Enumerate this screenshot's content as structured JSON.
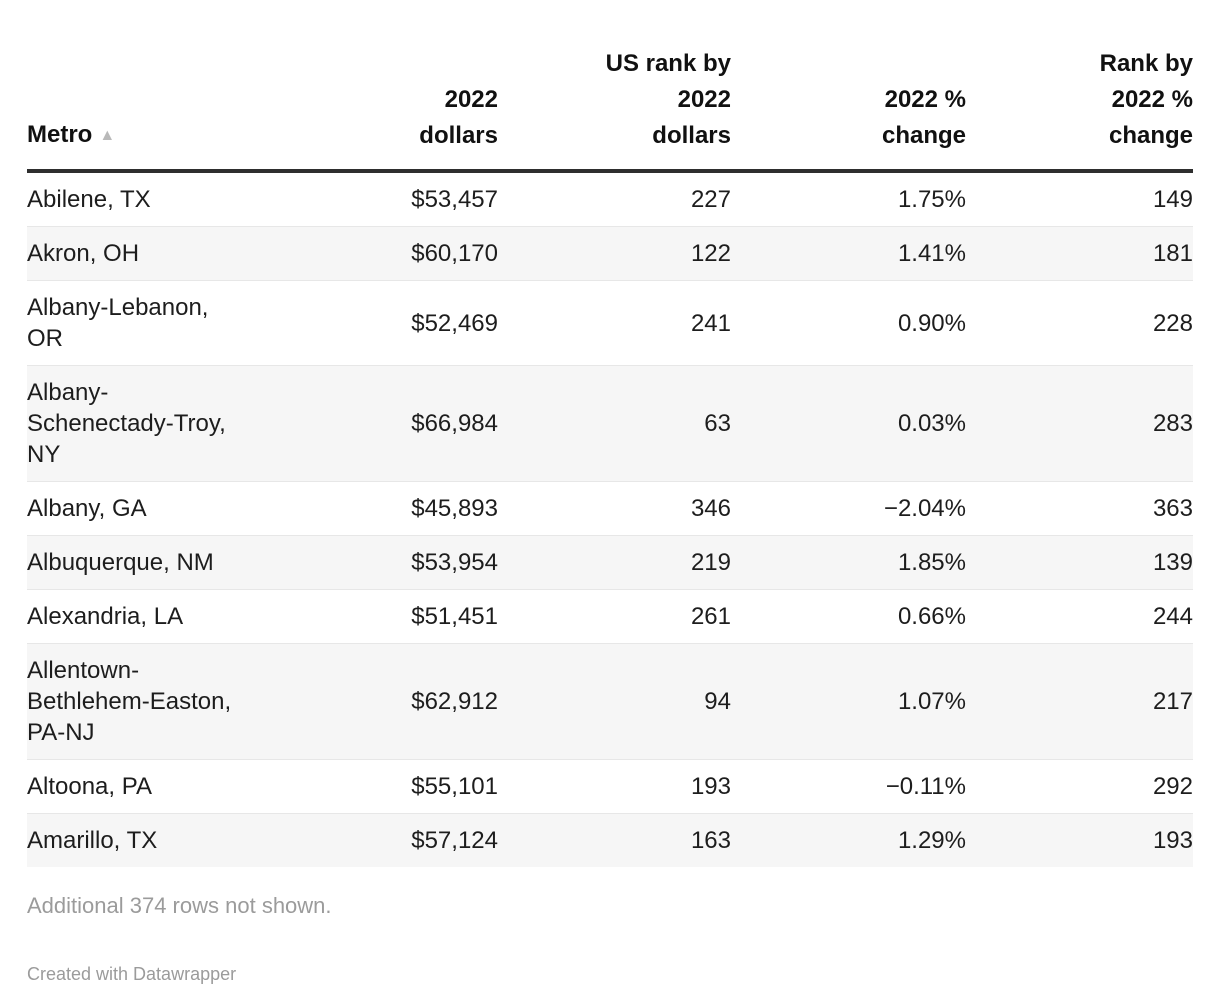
{
  "chart_data": {
    "type": "table",
    "sort_icon": "▲",
    "columns": [
      {
        "id": "metro",
        "label": "Metro",
        "align": "left",
        "sorted": "ascending"
      },
      {
        "id": "dollars",
        "label": "2022\ndollars",
        "align": "right"
      },
      {
        "id": "rank_dollars",
        "label": "US rank by\n2022\ndollars",
        "align": "right"
      },
      {
        "id": "pct_change",
        "label": "2022 %\nchange",
        "align": "right"
      },
      {
        "id": "rank_pct",
        "label": "Rank by\n2022 %\nchange",
        "align": "right"
      }
    ],
    "rows": [
      {
        "metro": "Abilene, TX",
        "dollars": "$53,457",
        "rank_dollars": "227",
        "pct_change": "1.75%",
        "rank_pct": "149"
      },
      {
        "metro": "Akron, OH",
        "dollars": "$60,170",
        "rank_dollars": "122",
        "pct_change": "1.41%",
        "rank_pct": "181"
      },
      {
        "metro": "Albany-Lebanon,\nOR",
        "dollars": "$52,469",
        "rank_dollars": "241",
        "pct_change": "0.90%",
        "rank_pct": "228"
      },
      {
        "metro": "Albany-\nSchenectady-Troy,\nNY",
        "dollars": "$66,984",
        "rank_dollars": "63",
        "pct_change": "0.03%",
        "rank_pct": "283"
      },
      {
        "metro": "Albany, GA",
        "dollars": "$45,893",
        "rank_dollars": "346",
        "pct_change": "−2.04%",
        "rank_pct": "363"
      },
      {
        "metro": "Albuquerque, NM",
        "dollars": "$53,954",
        "rank_dollars": "219",
        "pct_change": "1.85%",
        "rank_pct": "139"
      },
      {
        "metro": "Alexandria, LA",
        "dollars": "$51,451",
        "rank_dollars": "261",
        "pct_change": "0.66%",
        "rank_pct": "244"
      },
      {
        "metro": "Allentown-\nBethlehem-Easton,\nPA-NJ",
        "dollars": "$62,912",
        "rank_dollars": "94",
        "pct_change": "1.07%",
        "rank_pct": "217"
      },
      {
        "metro": "Altoona, PA",
        "dollars": "$55,101",
        "rank_dollars": "193",
        "pct_change": "−0.11%",
        "rank_pct": "292"
      },
      {
        "metro": "Amarillo, TX",
        "dollars": "$57,124",
        "rank_dollars": "163",
        "pct_change": "1.29%",
        "rank_pct": "193"
      }
    ],
    "note": "Additional 374 rows not shown.",
    "credit": "Created with Datawrapper",
    "layout_hints": {
      "striped_rows": true,
      "stripe_color": "#f6f6f6",
      "header_rule_color": "#2e2e2e",
      "footer_text_color": "#9b9b9b",
      "sort_icon_color": "#b9b9b9"
    }
  }
}
